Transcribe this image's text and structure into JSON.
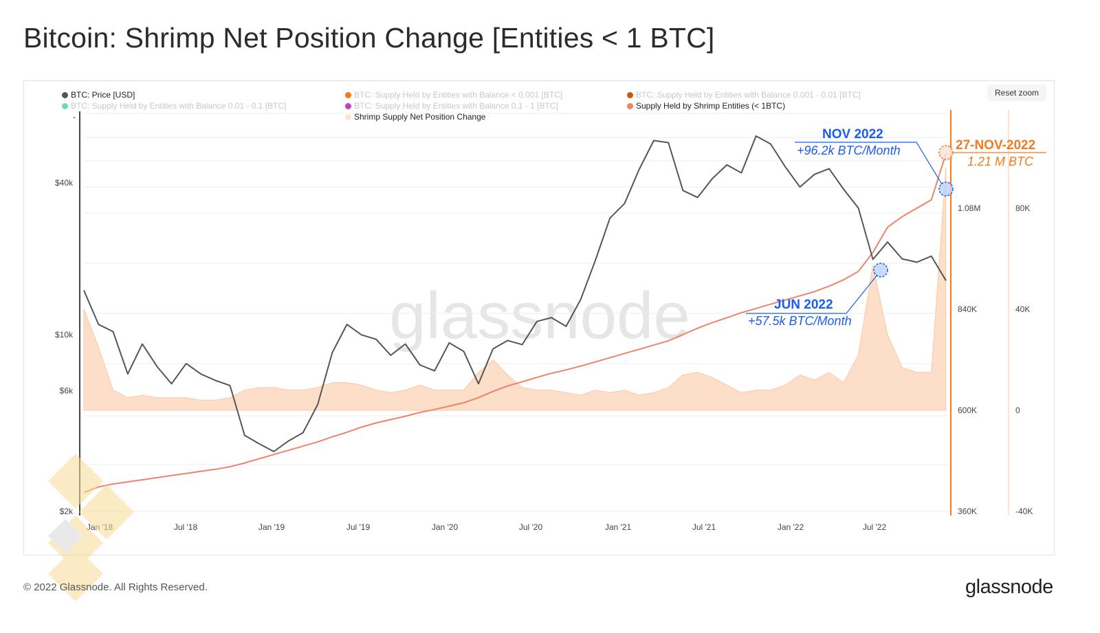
{
  "title": "Bitcoin: Shrimp Net Position Change [Entities < 1 BTC]",
  "reset_zoom_label": "Reset zoom",
  "footer": "© 2022 Glassnode. All Rights Reserved.",
  "logo": "glassnode",
  "watermark": "glassnode",
  "legend": [
    {
      "label": "BTC: Price [USD]",
      "color": "#555555",
      "active": true
    },
    {
      "label": "BTC: Supply Held by Entities with Balance < 0.001 [BTC]",
      "color": "#f47a1f",
      "active": false
    },
    {
      "label": "BTC: Supply Held by Entities with Balance 0.001 - 0.01 [BTC]",
      "color": "#c45a12",
      "active": false
    },
    {
      "label": "BTC: Supply Held by Entities with Balance 0.01 - 0.1 [BTC]",
      "color": "#6fd9c0",
      "active": false
    },
    {
      "label": "BTC: Supply Held by Entities with Balance 0.1 - 1 [BTC]",
      "color": "#c03fc9",
      "active": false
    },
    {
      "label": "Supply Held by Shrimp Entities (< 1BTC)",
      "color": "#f0826a",
      "active": true
    },
    {
      "label": "Shrimp Supply Net Position Change",
      "color": "#fde3d2",
      "active": true
    }
  ],
  "annotations": {
    "nov": {
      "title": "NOV 2022",
      "value": "+96.2k BTC/Month",
      "color": "#1a5cf0"
    },
    "jun": {
      "title": "JUN 2022",
      "value": "+57.5k BTC/Month",
      "color": "#1a5cf0"
    },
    "latest": {
      "title": "27-NOV-2022",
      "value": "1.21 M BTC",
      "color": "#f47a1f"
    }
  },
  "chart_data": {
    "type": "line",
    "x_tick_labels": [
      "Jan '18",
      "Jul '18",
      "Jan '19",
      "Jul '19",
      "Jan '20",
      "Jul '20",
      "Jan '21",
      "Jul '21",
      "Jan '22",
      "Jul '22"
    ],
    "y_left": {
      "scale": "log",
      "tick_labels": [
        "$2k",
        "$6k",
        "$10k",
        "$40k"
      ],
      "tick_values": [
        2000,
        6000,
        10000,
        40000
      ],
      "range": [
        2000,
        76000
      ]
    },
    "y_right_supply": {
      "tick_labels": [
        "360K",
        "600K",
        "840K",
        "1.08M"
      ],
      "tick_values": [
        360000,
        600000,
        840000,
        1080000
      ],
      "range": [
        360000,
        1320000
      ]
    },
    "y_right_change": {
      "tick_labels": [
        "-40K",
        "0",
        "40K",
        "80K"
      ],
      "tick_values": [
        -40000,
        0,
        40000,
        80000
      ],
      "range": [
        -40000,
        120000
      ]
    },
    "x": [
      "2017-12",
      "2018-01",
      "2018-02",
      "2018-03",
      "2018-04",
      "2018-05",
      "2018-06",
      "2018-07",
      "2018-08",
      "2018-09",
      "2018-10",
      "2018-11",
      "2018-12",
      "2019-01",
      "2019-02",
      "2019-03",
      "2019-04",
      "2019-05",
      "2019-06",
      "2019-07",
      "2019-08",
      "2019-09",
      "2019-10",
      "2019-11",
      "2019-12",
      "2020-01",
      "2020-02",
      "2020-03",
      "2020-04",
      "2020-05",
      "2020-06",
      "2020-07",
      "2020-08",
      "2020-09",
      "2020-10",
      "2020-11",
      "2020-12",
      "2021-01",
      "2021-02",
      "2021-03",
      "2021-04",
      "2021-05",
      "2021-06",
      "2021-07",
      "2021-08",
      "2021-09",
      "2021-10",
      "2021-11",
      "2021-12",
      "2022-01",
      "2022-02",
      "2022-03",
      "2022-04",
      "2022-05",
      "2022-06",
      "2022-07",
      "2022-08",
      "2022-09",
      "2022-10",
      "2022-11"
    ],
    "series": [
      {
        "name": "BTC: Price [USD]",
        "axis": "left",
        "color": "#555555",
        "values": [
          15000,
          11000,
          10300,
          7000,
          9200,
          7500,
          6400,
          7700,
          7000,
          6600,
          6300,
          4000,
          3700,
          3450,
          3800,
          4100,
          5300,
          8500,
          11000,
          10000,
          9600,
          8300,
          9200,
          7600,
          7200,
          9300,
          8600,
          6400,
          8800,
          9500,
          9150,
          11300,
          11700,
          10800,
          13800,
          19700,
          29000,
          33100,
          45200,
          58800,
          57700,
          37300,
          35000,
          41500,
          47100,
          43800,
          61300,
          57000,
          46300,
          38500,
          43200,
          45500,
          37700,
          31800,
          19900,
          23300,
          20000,
          19400,
          20500,
          16400
        ]
      },
      {
        "name": "Supply Held by Shrimp Entities (< 1BTC)",
        "axis": "right_supply",
        "color": "#f0826a",
        "values": [
          405000,
          418000,
          425000,
          430000,
          435000,
          440000,
          445000,
          450000,
          455000,
          460000,
          466000,
          475000,
          485000,
          495000,
          505000,
          515000,
          525000,
          537000,
          548000,
          560000,
          570000,
          578000,
          586000,
          595000,
          602000,
          610000,
          618000,
          630000,
          645000,
          658000,
          668000,
          678000,
          688000,
          696000,
          705000,
          715000,
          725000,
          735000,
          745000,
          755000,
          765000,
          780000,
          795000,
          808000,
          820000,
          832000,
          842000,
          852000,
          862000,
          872000,
          882000,
          895000,
          910000,
          930000,
          975000,
          1035000,
          1060000,
          1080000,
          1100000,
          1210000
        ]
      },
      {
        "name": "Shrimp Supply Net Position Change",
        "axis": "right_change",
        "type": "area",
        "color": "#fdd9c0",
        "values": [
          40000,
          25000,
          8000,
          5000,
          6000,
          5000,
          5000,
          5000,
          4000,
          4000,
          5000,
          8000,
          9000,
          9000,
          8000,
          8000,
          9000,
          11000,
          11000,
          10000,
          8000,
          7000,
          8000,
          10000,
          8000,
          8000,
          8000,
          15000,
          20000,
          14000,
          9000,
          8000,
          8000,
          7000,
          6000,
          8000,
          7000,
          8000,
          6000,
          7000,
          9000,
          14000,
          15000,
          13000,
          10000,
          7000,
          8000,
          8000,
          10000,
          14000,
          12000,
          15000,
          11000,
          22000,
          57500,
          30000,
          17000,
          15000,
          15000,
          96200
        ]
      }
    ]
  }
}
